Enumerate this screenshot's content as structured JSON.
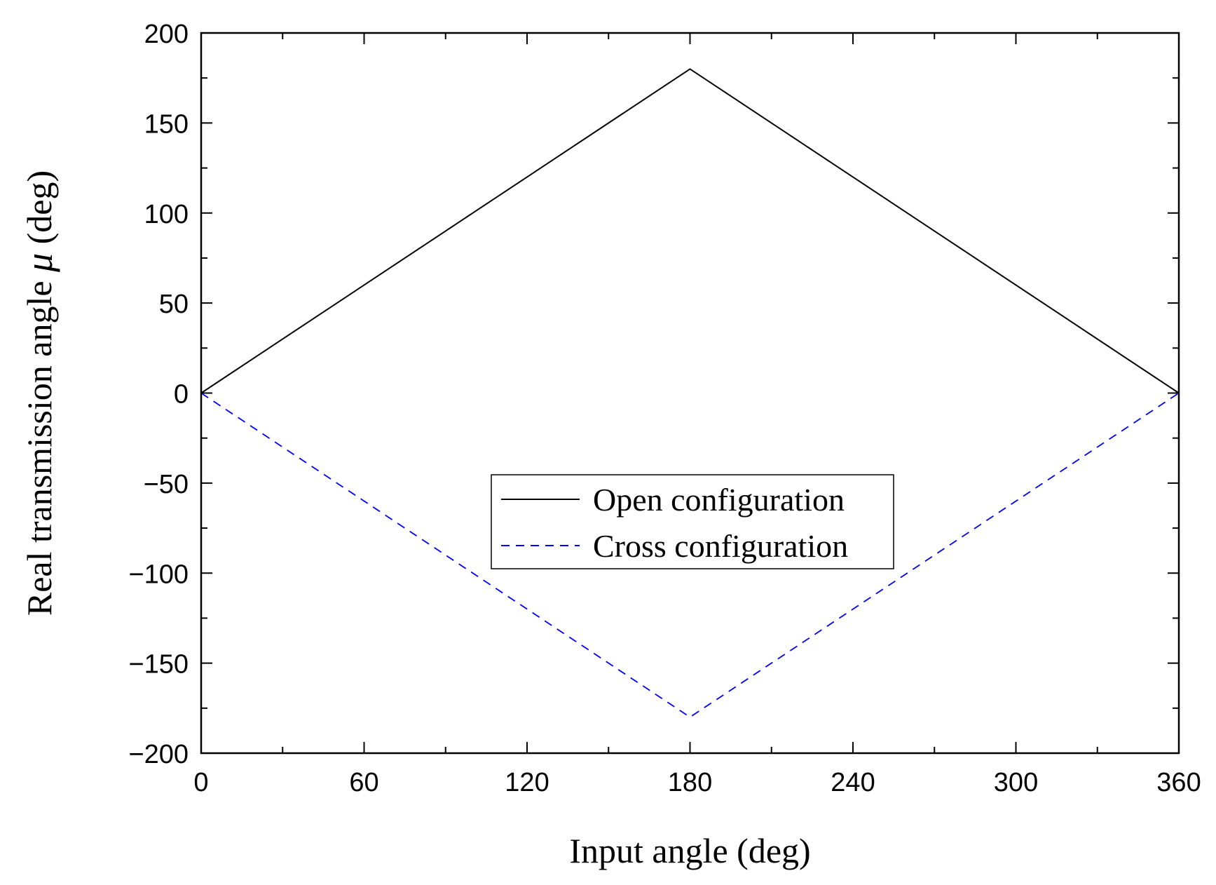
{
  "chart_data": {
    "type": "line",
    "title": "",
    "xlabel": "Input angle (deg)",
    "ylabel": {
      "prefix": "Real transmission angle ",
      "symbol": "μ",
      "suffix": " (deg)"
    },
    "xlim": [
      0,
      360
    ],
    "ylim": [
      -200,
      200
    ],
    "xticks": [
      0,
      60,
      120,
      180,
      240,
      300,
      360
    ],
    "yticks": [
      -200,
      -150,
      -100,
      -50,
      0,
      50,
      100,
      150,
      200
    ],
    "xtick_labels": [
      "0",
      "60",
      "120",
      "180",
      "240",
      "300",
      "360"
    ],
    "ytick_labels": [
      "−200",
      "−150",
      "−100",
      "−50",
      "0",
      "50",
      "100",
      "150",
      "200"
    ],
    "grid": false,
    "legend_position": "center",
    "series": [
      {
        "name": "Open configuration",
        "color": "#000000",
        "style": "solid",
        "x": [
          0,
          180,
          360
        ],
        "y": [
          0,
          180,
          0
        ]
      },
      {
        "name": "Cross configuration",
        "color": "#0000ff",
        "style": "dashed",
        "x": [
          0,
          180,
          360
        ],
        "y": [
          0,
          -180,
          0
        ]
      }
    ]
  }
}
